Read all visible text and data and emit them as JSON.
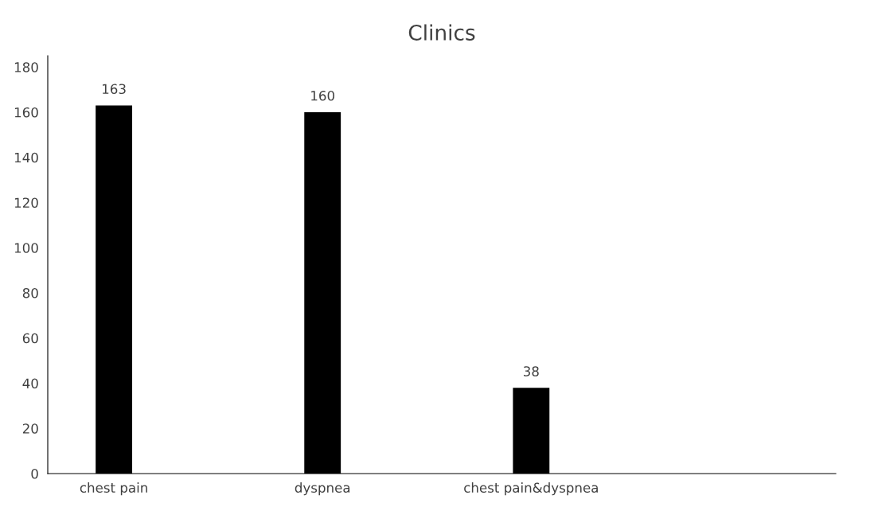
{
  "chart_data": {
    "type": "bar",
    "title": "Clinics",
    "categories": [
      "chest pain",
      "dyspnea",
      "chest pain&dyspnea",
      null
    ],
    "values": [
      163,
      160,
      38,
      null
    ],
    "color": "#000000",
    "ylim": [
      0,
      185
    ],
    "yticks": [
      0,
      20,
      40,
      60,
      80,
      100,
      120,
      140,
      160,
      180
    ],
    "grid": false,
    "legend": false,
    "data_labels": true
  }
}
